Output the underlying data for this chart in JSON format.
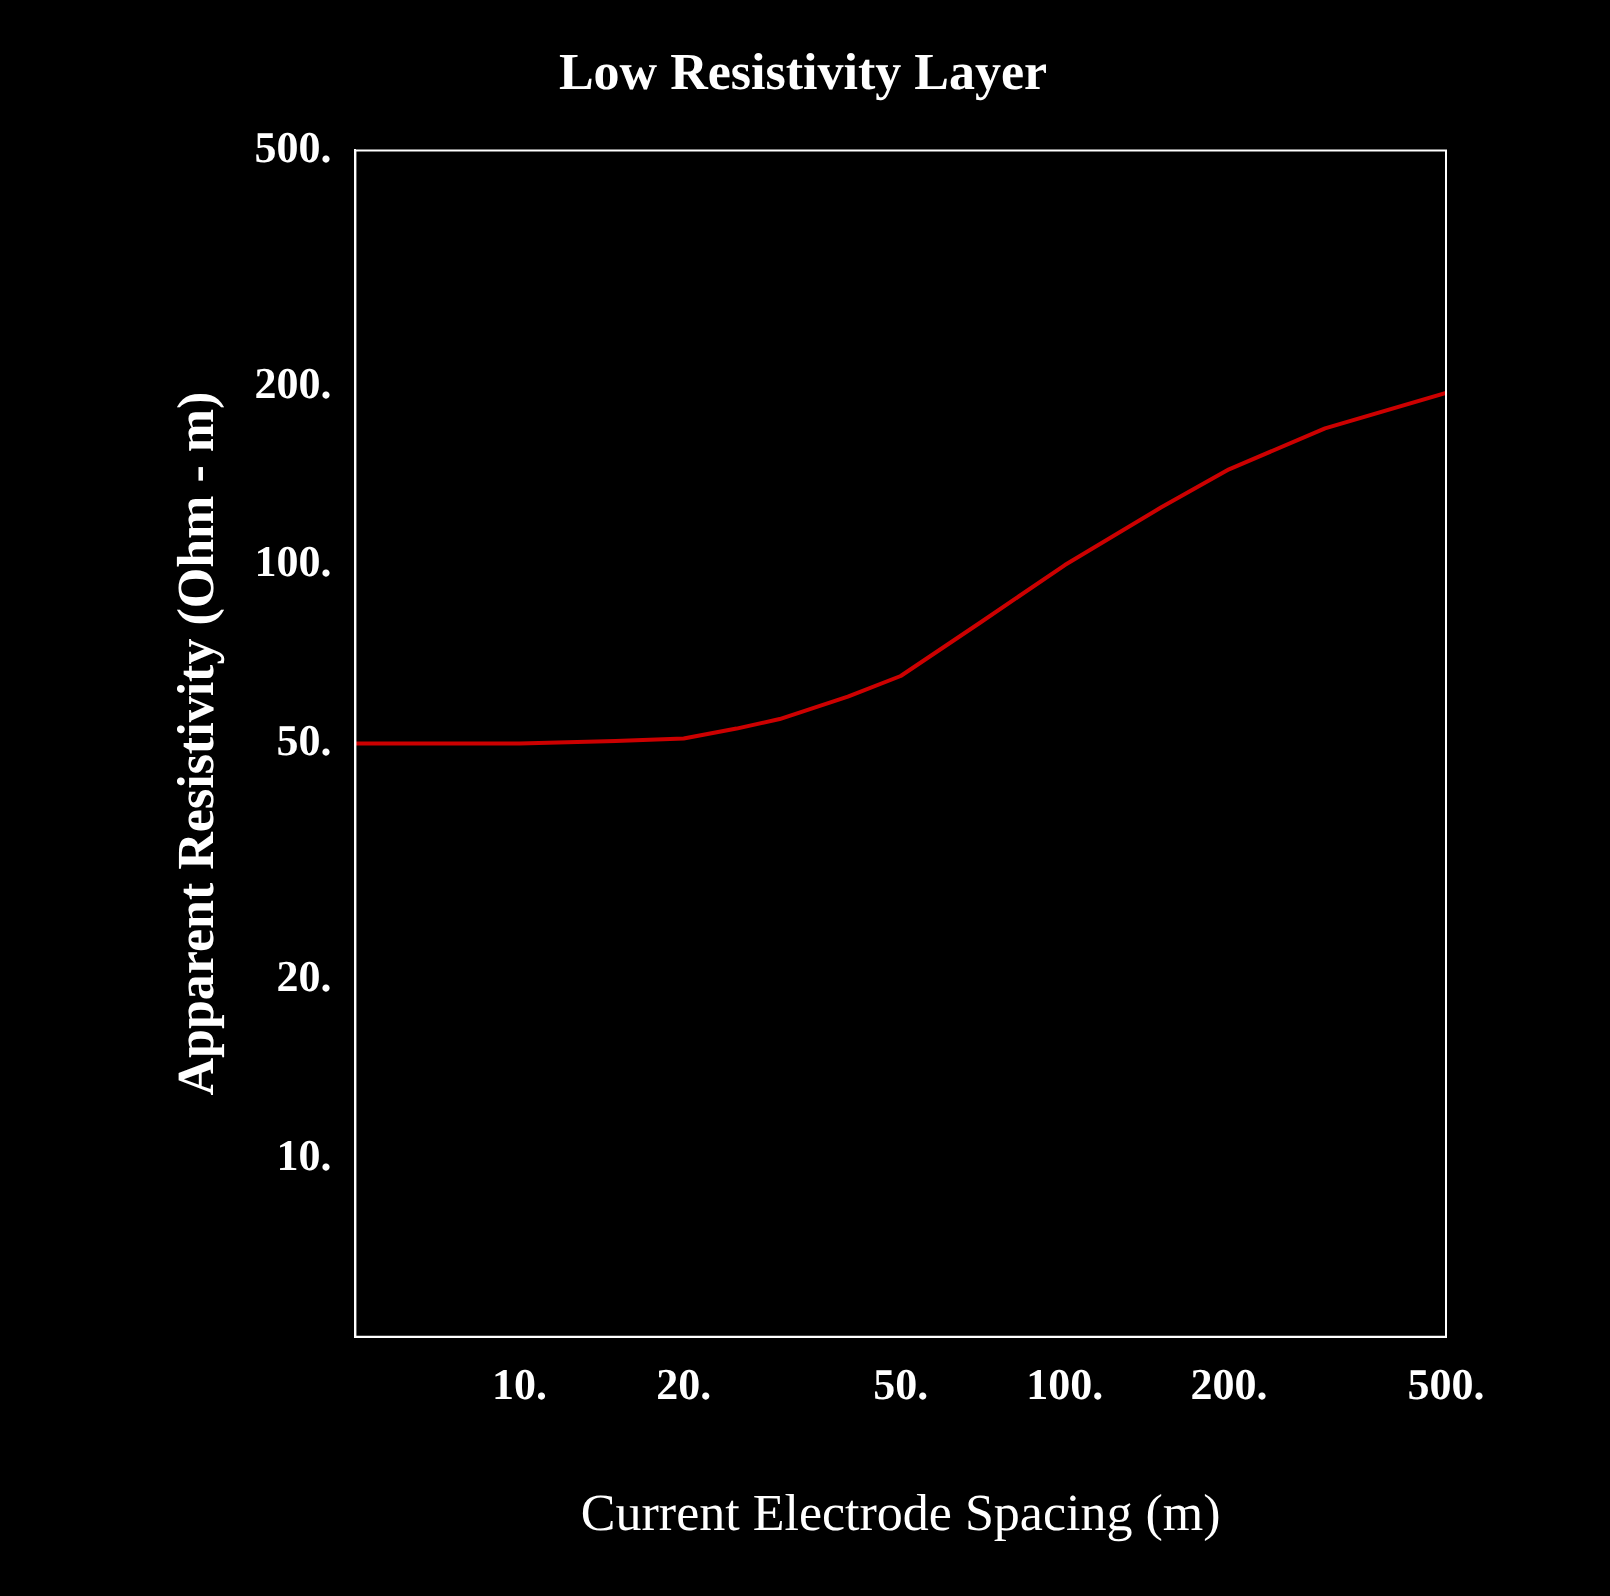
{
  "chart_data": {
    "type": "line",
    "title": "Low Resistivity Layer",
    "xlabel": "Current Electrode Spacing (m)",
    "ylabel": "Apparent Resistivity (Ohm - m)",
    "log": "xy",
    "grid": false,
    "legend": false,
    "marker": "none",
    "line_style": "solid",
    "x": [
      5,
      7,
      10,
      15,
      20,
      25,
      30,
      40,
      50,
      70,
      100,
      150,
      200,
      300,
      500
    ],
    "series": [
      {
        "color": "#cc0000",
        "values": [
          50,
          50,
          50,
          50.5,
          51,
          53,
          55,
          60,
          65,
          80,
          100,
          125,
          145,
          170,
          195
        ]
      }
    ],
    "xlim": [
      5,
      500
    ],
    "ylim": [
      5,
      500
    ],
    "xticks": [
      {
        "value": 10,
        "label": "10."
      },
      {
        "value": 20,
        "label": "20."
      },
      {
        "value": 50,
        "label": "50."
      },
      {
        "value": 100,
        "label": "100."
      },
      {
        "value": 200,
        "label": "200."
      },
      {
        "value": 500,
        "label": "500."
      }
    ],
    "yticks": [
      {
        "value": 10,
        "label": "10."
      },
      {
        "value": 20,
        "label": "20."
      },
      {
        "value": 50,
        "label": "50."
      },
      {
        "value": 100,
        "label": "100."
      },
      {
        "value": 200,
        "label": "200."
      },
      {
        "value": 500,
        "label": "500."
      }
    ]
  }
}
